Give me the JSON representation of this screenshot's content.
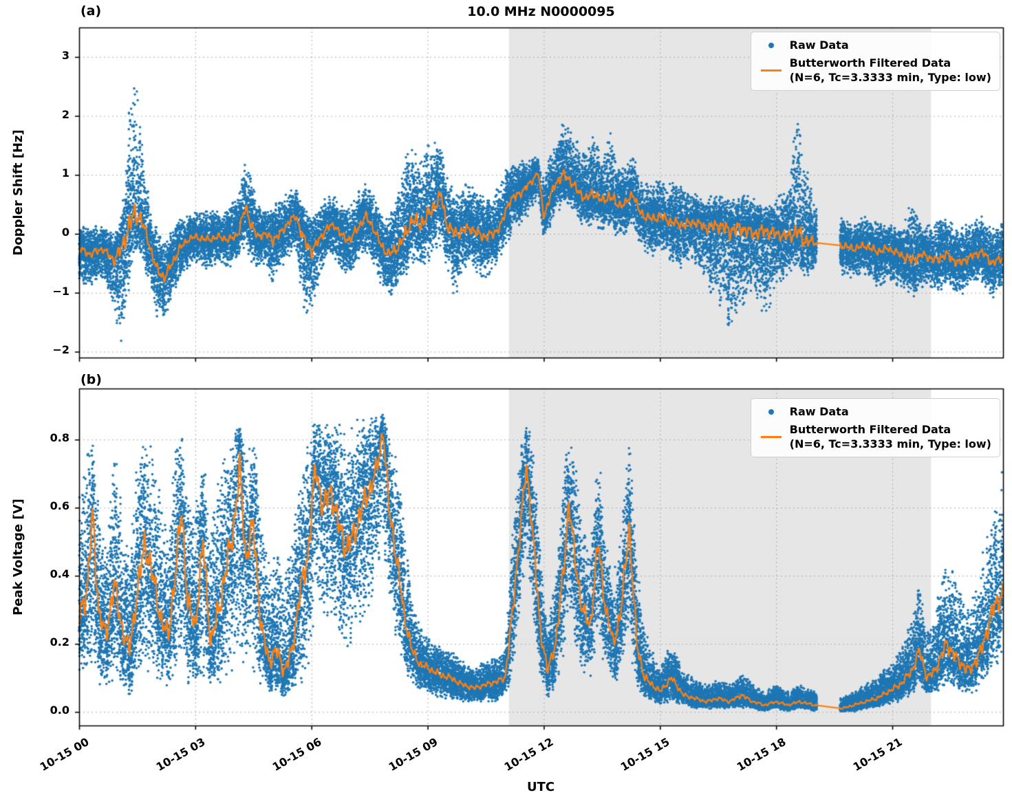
{
  "figure": {
    "title": "10.0 MHz N0000095",
    "xlabel": "UTC",
    "panel_a_label": "(a)",
    "panel_b_label": "(b)",
    "legend": {
      "raw_label": "Raw Data",
      "filtered_label": "Butterworth Filtered Data",
      "filtered_sub": "(N=6, Tc=3.3333 min, Type: low)"
    },
    "colors": {
      "raw": "#1f77b4",
      "filtered": "#ff7f0e",
      "shade": "#e6e6e6",
      "grid": "#ababab",
      "spine": "#000000"
    }
  },
  "chart_data": [
    {
      "type": "scatter",
      "panel": "a",
      "title": "10.0 MHz N0000095",
      "ylabel": "Doppler Shift [Hz]",
      "ylim": [
        -2.1,
        3.5
      ],
      "yticks": [
        -2,
        -1,
        0,
        1,
        2,
        3
      ],
      "ytick_labels": [
        "−2",
        "−1",
        "0",
        "1",
        "2",
        "3"
      ],
      "xlim": [
        0,
        23.86
      ],
      "xticks": [
        0,
        3,
        6,
        9,
        12,
        15,
        18,
        21
      ],
      "xtick_labels": [
        "10-15 00",
        "10-15 03",
        "10-15 06",
        "10-15 09",
        "10-15 12",
        "10-15 15",
        "10-15 18",
        "10-15 21"
      ],
      "grid": "dotted",
      "legend_position": "upper right",
      "shaded_span": [
        11.1,
        22.0
      ],
      "gap": [
        19.05,
        19.65
      ],
      "x": [
        0.0,
        0.3,
        0.6,
        0.9,
        1.1,
        1.3,
        1.45,
        1.6,
        1.8,
        2.0,
        2.2,
        2.4,
        2.6,
        2.8,
        3.0,
        3.3,
        3.6,
        3.9,
        4.1,
        4.3,
        4.45,
        4.6,
        4.8,
        5.0,
        5.2,
        5.4,
        5.6,
        5.8,
        6.0,
        6.2,
        6.4,
        6.6,
        6.8,
        7.0,
        7.2,
        7.4,
        7.6,
        7.8,
        8.0,
        8.2,
        8.4,
        8.6,
        8.8,
        9.0,
        9.2,
        9.35,
        9.5,
        9.7,
        9.9,
        10.1,
        10.3,
        10.5,
        10.7,
        10.9,
        11.1,
        11.3,
        11.5,
        11.7,
        11.85,
        12.0,
        12.15,
        12.3,
        12.5,
        12.7,
        12.9,
        13.1,
        13.3,
        13.5,
        13.7,
        13.9,
        14.1,
        14.3,
        14.45,
        14.6,
        14.8,
        15.0,
        15.3,
        15.6,
        15.9,
        16.2,
        16.5,
        16.8,
        17.1,
        17.4,
        17.7,
        18.0,
        18.3,
        18.55,
        18.7,
        19.0,
        19.7,
        20.0,
        20.3,
        20.6,
        20.9,
        21.2,
        21.5,
        21.8,
        22.1,
        22.4,
        22.7,
        23.0,
        23.3,
        23.6,
        23.85
      ],
      "series": [
        {
          "name": "Raw Data",
          "style": "scatter",
          "envelope_lo": [
            -0.8,
            -0.9,
            -0.8,
            -1.3,
            -1.9,
            -0.9,
            -0.3,
            -0.4,
            -0.9,
            -1.4,
            -1.5,
            -1.1,
            -0.8,
            -0.6,
            -0.5,
            -0.6,
            -0.5,
            -0.6,
            -0.4,
            -0.3,
            -0.5,
            -0.6,
            -0.5,
            -0.9,
            -0.6,
            -0.4,
            -0.3,
            -1.3,
            -1.4,
            -0.8,
            -0.4,
            -0.4,
            -0.7,
            -0.8,
            -0.5,
            -0.3,
            -0.5,
            -0.9,
            -1.1,
            -1.0,
            -0.8,
            -0.5,
            -0.7,
            -0.5,
            -0.3,
            -0.2,
            -0.6,
            -1.1,
            -0.7,
            -0.5,
            -0.7,
            -0.8,
            -0.6,
            -0.4,
            -0.1,
            0.1,
            0.2,
            0.4,
            0.6,
            -0.1,
            0.1,
            0.3,
            0.5,
            0.4,
            0.2,
            0.1,
            0.2,
            0.0,
            0.1,
            -0.1,
            -0.1,
            0.1,
            -0.2,
            -0.3,
            -0.4,
            -0.3,
            -0.5,
            -0.6,
            -0.5,
            -0.9,
            -1.2,
            -1.6,
            -1.3,
            -0.9,
            -1.5,
            -0.9,
            -0.7,
            -0.5,
            -0.8,
            -0.6,
            -0.7,
            -0.8,
            -0.7,
            -0.9,
            -0.8,
            -0.9,
            -1.1,
            -0.9,
            -1.0,
            -0.9,
            -1.1,
            -0.9,
            -0.8,
            -1.1,
            -0.9
          ],
          "envelope_hi": [
            0.15,
            0.1,
            0.2,
            0.0,
            0.3,
            2.3,
            2.75,
            1.7,
            0.6,
            0.1,
            -0.1,
            0.1,
            0.3,
            0.3,
            0.4,
            0.4,
            0.4,
            0.5,
            0.6,
            1.35,
            1.0,
            0.5,
            0.4,
            0.5,
            0.6,
            0.7,
            0.8,
            0.5,
            0.3,
            0.5,
            0.7,
            0.7,
            0.5,
            0.5,
            0.7,
            0.9,
            0.7,
            0.4,
            0.3,
            0.6,
            1.3,
            1.5,
            1.4,
            1.5,
            1.6,
            1.65,
            1.0,
            0.7,
            0.8,
            0.9,
            0.7,
            0.6,
            0.7,
            0.9,
            1.2,
            1.25,
            1.25,
            1.3,
            1.3,
            1.0,
            1.3,
            1.5,
            1.9,
            1.8,
            1.6,
            1.4,
            1.7,
            1.3,
            1.8,
            1.2,
            1.1,
            1.4,
            1.0,
            0.9,
            0.8,
            1.0,
            0.9,
            0.8,
            0.7,
            0.6,
            0.7,
            0.6,
            0.7,
            0.6,
            0.5,
            0.6,
            0.8,
            2.15,
            1.5,
            0.5,
            0.3,
            0.2,
            0.3,
            0.2,
            0.2,
            0.1,
            0.6,
            0.1,
            0.2,
            0.3,
            0.1,
            0.2,
            0.3,
            0.1,
            0.2
          ]
        },
        {
          "name": "Butterworth Filtered Data (N=6, Tc=3.3333 min, Type: low)",
          "style": "line",
          "y": [
            -0.25,
            -0.35,
            -0.25,
            -0.45,
            -0.25,
            0.15,
            0.35,
            0.25,
            -0.15,
            -0.6,
            -0.75,
            -0.5,
            -0.25,
            -0.1,
            -0.05,
            -0.1,
            -0.05,
            -0.1,
            0.0,
            0.45,
            0.15,
            -0.05,
            0.0,
            -0.1,
            0.0,
            0.2,
            0.3,
            -0.1,
            -0.3,
            -0.1,
            0.1,
            0.15,
            -0.05,
            -0.1,
            0.1,
            0.3,
            0.1,
            -0.2,
            -0.35,
            -0.25,
            -0.05,
            0.25,
            0.15,
            0.3,
            0.5,
            0.65,
            0.15,
            0.0,
            0.05,
            0.1,
            0.0,
            -0.05,
            0.0,
            0.15,
            0.55,
            0.65,
            0.75,
            0.9,
            1.05,
            0.3,
            0.6,
            0.85,
            1.0,
            0.9,
            0.7,
            0.6,
            0.7,
            0.55,
            0.65,
            0.5,
            0.5,
            0.7,
            0.4,
            0.3,
            0.25,
            0.3,
            0.2,
            0.15,
            0.2,
            0.1,
            0.15,
            0.05,
            0.1,
            0.0,
            0.05,
            0.0,
            -0.05,
            0.05,
            -0.1,
            -0.15,
            -0.2,
            -0.25,
            -0.2,
            -0.3,
            -0.25,
            -0.35,
            -0.45,
            -0.35,
            -0.45,
            -0.35,
            -0.5,
            -0.4,
            -0.3,
            -0.5,
            -0.4
          ]
        }
      ]
    },
    {
      "type": "scatter",
      "panel": "b",
      "title": "",
      "xlabel": "UTC",
      "ylabel": "Peak Voltage [V]",
      "ylim": [
        -0.04,
        0.95
      ],
      "yticks": [
        0.0,
        0.2,
        0.4,
        0.6,
        0.8
      ],
      "ytick_labels": [
        "0.0",
        "0.2",
        "0.4",
        "0.6",
        "0.8"
      ],
      "xlim": [
        0,
        23.86
      ],
      "xticks": [
        0,
        3,
        6,
        9,
        12,
        15,
        18,
        21
      ],
      "xtick_labels": [
        "10-15 00",
        "10-15 03",
        "10-15 06",
        "10-15 09",
        "10-15 12",
        "10-15 15",
        "10-15 18",
        "10-15 21"
      ],
      "grid": "dotted",
      "legend_position": "upper right",
      "shaded_span": [
        11.1,
        22.0
      ],
      "gap": [
        19.05,
        19.65
      ],
      "x": [
        0.0,
        0.2,
        0.35,
        0.5,
        0.7,
        0.9,
        1.1,
        1.3,
        1.5,
        1.7,
        1.9,
        2.1,
        2.3,
        2.5,
        2.65,
        2.8,
        3.0,
        3.2,
        3.4,
        3.6,
        3.8,
        4.0,
        4.15,
        4.3,
        4.5,
        4.7,
        4.9,
        5.1,
        5.3,
        5.5,
        5.7,
        5.9,
        6.1,
        6.3,
        6.5,
        6.7,
        6.9,
        7.1,
        7.3,
        7.5,
        7.7,
        7.85,
        8.0,
        8.2,
        8.4,
        8.6,
        8.8,
        9.0,
        9.3,
        9.6,
        9.9,
        10.2,
        10.5,
        10.8,
        11.0,
        11.2,
        11.4,
        11.55,
        11.7,
        11.9,
        12.1,
        12.3,
        12.5,
        12.65,
        12.8,
        13.0,
        13.2,
        13.4,
        13.6,
        13.8,
        14.0,
        14.2,
        14.4,
        14.6,
        14.8,
        15.0,
        15.3,
        15.6,
        15.9,
        16.2,
        16.5,
        16.8,
        17.1,
        17.4,
        17.7,
        18.0,
        18.3,
        18.6,
        19.0,
        19.7,
        20.0,
        20.3,
        20.6,
        20.9,
        21.2,
        21.5,
        21.7,
        21.9,
        22.1,
        22.4,
        22.7,
        23.0,
        23.3,
        23.6,
        23.85
      ],
      "series": [
        {
          "name": "Raw Data",
          "style": "scatter",
          "envelope_lo": [
            0.1,
            0.1,
            0.15,
            0.08,
            0.06,
            0.1,
            0.07,
            0.05,
            0.08,
            0.12,
            0.1,
            0.07,
            0.05,
            0.1,
            0.15,
            0.08,
            0.06,
            0.1,
            0.05,
            0.07,
            0.1,
            0.12,
            0.2,
            0.1,
            0.12,
            0.07,
            0.05,
            0.05,
            0.04,
            0.05,
            0.08,
            0.1,
            0.3,
            0.25,
            0.3,
            0.2,
            0.18,
            0.2,
            0.25,
            0.3,
            0.4,
            0.5,
            0.3,
            0.2,
            0.12,
            0.08,
            0.06,
            0.05,
            0.04,
            0.03,
            0.03,
            0.02,
            0.03,
            0.03,
            0.04,
            0.1,
            0.3,
            0.45,
            0.3,
            0.1,
            0.04,
            0.06,
            0.15,
            0.3,
            0.15,
            0.1,
            0.08,
            0.2,
            0.1,
            0.07,
            0.1,
            0.2,
            0.07,
            0.04,
            0.03,
            0.02,
            0.03,
            0.02,
            0.01,
            0.01,
            0.01,
            0.01,
            0.01,
            0.01,
            0.0,
            0.01,
            0.0,
            0.01,
            0.0,
            0.0,
            0.0,
            0.01,
            0.01,
            0.02,
            0.03,
            0.05,
            0.08,
            0.04,
            0.05,
            0.08,
            0.06,
            0.05,
            0.07,
            0.12,
            0.15
          ],
          "envelope_hi": [
            0.65,
            0.75,
            0.85,
            0.6,
            0.5,
            0.8,
            0.6,
            0.45,
            0.75,
            0.85,
            0.8,
            0.65,
            0.55,
            0.8,
            0.85,
            0.65,
            0.6,
            0.8,
            0.55,
            0.7,
            0.8,
            0.85,
            0.87,
            0.8,
            0.85,
            0.6,
            0.45,
            0.5,
            0.4,
            0.5,
            0.7,
            0.8,
            0.88,
            0.87,
            0.88,
            0.85,
            0.82,
            0.85,
            0.87,
            0.88,
            0.88,
            0.88,
            0.85,
            0.75,
            0.55,
            0.35,
            0.25,
            0.22,
            0.2,
            0.18,
            0.15,
            0.13,
            0.15,
            0.16,
            0.2,
            0.55,
            0.8,
            0.86,
            0.8,
            0.5,
            0.25,
            0.4,
            0.7,
            0.85,
            0.75,
            0.55,
            0.5,
            0.8,
            0.55,
            0.4,
            0.55,
            0.82,
            0.45,
            0.25,
            0.18,
            0.14,
            0.2,
            0.12,
            0.1,
            0.08,
            0.1,
            0.08,
            0.12,
            0.08,
            0.06,
            0.08,
            0.06,
            0.08,
            0.06,
            0.04,
            0.06,
            0.08,
            0.1,
            0.14,
            0.18,
            0.28,
            0.38,
            0.25,
            0.3,
            0.45,
            0.38,
            0.3,
            0.45,
            0.6,
            0.72
          ]
        },
        {
          "name": "Butterworth Filtered Data (N=6, Tc=3.3333 min, Type: low)",
          "style": "line",
          "y": [
            0.28,
            0.35,
            0.58,
            0.3,
            0.22,
            0.38,
            0.25,
            0.18,
            0.35,
            0.5,
            0.4,
            0.28,
            0.22,
            0.42,
            0.6,
            0.32,
            0.25,
            0.5,
            0.2,
            0.3,
            0.42,
            0.55,
            0.72,
            0.45,
            0.55,
            0.25,
            0.15,
            0.18,
            0.12,
            0.18,
            0.35,
            0.45,
            0.72,
            0.6,
            0.65,
            0.55,
            0.48,
            0.52,
            0.6,
            0.65,
            0.72,
            0.83,
            0.6,
            0.45,
            0.28,
            0.18,
            0.14,
            0.13,
            0.11,
            0.1,
            0.08,
            0.07,
            0.08,
            0.09,
            0.1,
            0.3,
            0.55,
            0.72,
            0.55,
            0.25,
            0.12,
            0.2,
            0.4,
            0.62,
            0.45,
            0.3,
            0.25,
            0.5,
            0.3,
            0.2,
            0.3,
            0.55,
            0.2,
            0.1,
            0.08,
            0.06,
            0.1,
            0.05,
            0.04,
            0.03,
            0.04,
            0.03,
            0.05,
            0.03,
            0.02,
            0.03,
            0.02,
            0.03,
            0.02,
            0.01,
            0.02,
            0.03,
            0.04,
            0.06,
            0.08,
            0.12,
            0.18,
            0.1,
            0.12,
            0.2,
            0.15,
            0.12,
            0.18,
            0.3,
            0.35
          ]
        }
      ]
    }
  ]
}
